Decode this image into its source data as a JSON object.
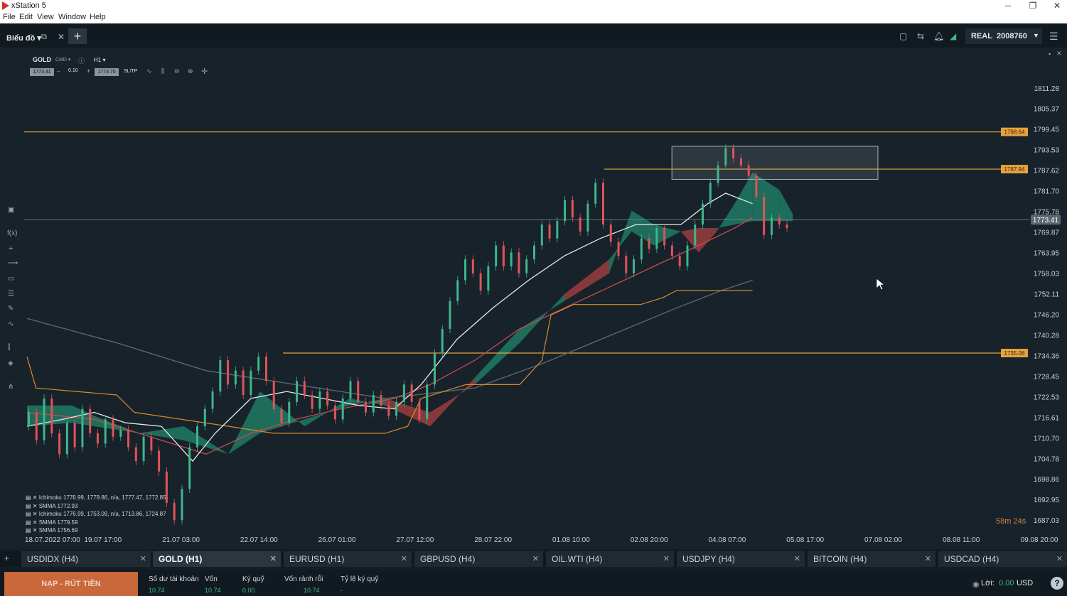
{
  "window": {
    "title": "xStation 5"
  },
  "menu": [
    "File",
    "Edit",
    "View",
    "Window",
    "Help"
  ],
  "appbar": {
    "section": "Biểu đồ",
    "account_type": "REAL",
    "account_number": "2008760"
  },
  "chart": {
    "symbol": "GOLD",
    "cmd": "CMD",
    "timeframe": "H1",
    "sell_price": "1773.41",
    "volume": "0.10",
    "buy_price": "1773.70",
    "sltp": "SL/TP",
    "countdown": "58m 24s",
    "cursor": {
      "x": 1233,
      "y": 392
    },
    "indicators": [
      "Ichimoku 1776.99, 1779.86, n/a, 1777.47, 1772.85",
      "SMMA 1772.93",
      "Ichimoku 1776.99, 1753.09, n/a, 1713.86, 1724.87",
      "SMMA 1779.59",
      "SMMA 1756.69"
    ]
  },
  "chart_data": {
    "type": "candlestick",
    "y_ticks": [
      "1811.28",
      "1805.37",
      "1799.45",
      "1793.53",
      "1787.62",
      "1781.70",
      "1775.78",
      "1769.87",
      "1763.95",
      "1758.03",
      "1752.11",
      "1746.20",
      "1740.28",
      "1734.36",
      "1728.45",
      "1722.53",
      "1716.61",
      "1710.70",
      "1704.78",
      "1698.86",
      "1692.95",
      "1687.03"
    ],
    "x_ticks": [
      "18.07.2022 07:00",
      "19.07 17:00",
      "21.07 03:00",
      "22.07 14:00",
      "26.07 01:00",
      "27.07 12:00",
      "28.07 22:00",
      "01.08 10:00",
      "02.08 20:00",
      "04.08 07:00",
      "05.08 17:00",
      "07.08 02:00",
      "08.08 11:00",
      "09.08 20:00"
    ],
    "ylim": [
      1684.0,
      1814.3
    ],
    "current_price": "1773.41",
    "horizontal_levels": [
      "1798.64",
      "1787.94",
      "1735.06"
    ],
    "smma_fast": [
      [
        0,
        1714
      ],
      [
        8,
        1716
      ],
      [
        15,
        1718
      ],
      [
        22,
        1715
      ],
      [
        30,
        1714
      ],
      [
        37,
        1704
      ],
      [
        42,
        1712
      ],
      [
        50,
        1722
      ],
      [
        58,
        1724
      ],
      [
        66,
        1722
      ],
      [
        74,
        1720
      ],
      [
        82,
        1719
      ],
      [
        88,
        1726
      ],
      [
        96,
        1739
      ],
      [
        104,
        1748
      ],
      [
        112,
        1756
      ],
      [
        120,
        1763
      ],
      [
        128,
        1768
      ],
      [
        136,
        1772
      ],
      [
        140,
        1772
      ],
      [
        146,
        1772
      ],
      [
        152,
        1778
      ],
      [
        156,
        1781
      ],
      [
        162,
        1778
      ]
    ],
    "smma_mid": [
      [
        0,
        1718
      ],
      [
        15,
        1716
      ],
      [
        30,
        1710
      ],
      [
        40,
        1706
      ],
      [
        50,
        1712
      ],
      [
        60,
        1716
      ],
      [
        70,
        1719
      ],
      [
        82,
        1722
      ],
      [
        90,
        1726
      ],
      [
        100,
        1733
      ],
      [
        110,
        1742
      ],
      [
        120,
        1748
      ],
      [
        130,
        1754
      ],
      [
        140,
        1760
      ],
      [
        150,
        1766
      ],
      [
        158,
        1771
      ],
      [
        162,
        1774
      ]
    ],
    "smma_slow": [
      [
        0,
        1745
      ],
      [
        20,
        1738
      ],
      [
        40,
        1730
      ],
      [
        60,
        1726
      ],
      [
        80,
        1722
      ],
      [
        100,
        1725
      ],
      [
        115,
        1732
      ],
      [
        130,
        1740
      ],
      [
        145,
        1748
      ],
      [
        155,
        1753
      ],
      [
        162,
        1756
      ]
    ],
    "kijun": [
      [
        0,
        1734
      ],
      [
        2,
        1725
      ],
      [
        20,
        1723
      ],
      [
        24,
        1718
      ],
      [
        45,
        1714
      ],
      [
        55,
        1712
      ],
      [
        80,
        1712
      ],
      [
        85,
        1714
      ],
      [
        88,
        1722
      ],
      [
        98,
        1726
      ],
      [
        110,
        1726
      ],
      [
        115,
        1733
      ],
      [
        117,
        1746
      ],
      [
        122,
        1749
      ],
      [
        137,
        1749
      ],
      [
        142,
        1751
      ],
      [
        145,
        1753
      ],
      [
        162,
        1753
      ]
    ],
    "cloud_a": [
      [
        0,
        1720
      ],
      [
        10,
        1720
      ],
      [
        15,
        1717
      ],
      [
        25,
        1712
      ],
      [
        35,
        1714
      ],
      [
        45,
        1706
      ],
      [
        52,
        1724
      ],
      [
        62,
        1714
      ],
      [
        72,
        1722
      ],
      [
        80,
        1720
      ],
      [
        90,
        1714
      ],
      [
        100,
        1728
      ],
      [
        110,
        1742
      ],
      [
        120,
        1750
      ],
      [
        130,
        1758
      ],
      [
        135,
        1776
      ],
      [
        140,
        1772
      ],
      [
        146,
        1770
      ],
      [
        150,
        1764
      ],
      [
        154,
        1770
      ],
      [
        158,
        1778
      ],
      [
        162,
        1787
      ],
      [
        168,
        1782
      ],
      [
        171,
        1775
      ]
    ],
    "cloud_b": [
      [
        0,
        1714
      ],
      [
        10,
        1715
      ],
      [
        15,
        1714
      ],
      [
        25,
        1712
      ],
      [
        35,
        1710
      ],
      [
        45,
        1706
      ],
      [
        52,
        1712
      ],
      [
        62,
        1716
      ],
      [
        72,
        1720
      ],
      [
        80,
        1722
      ],
      [
        90,
        1718
      ],
      [
        100,
        1726
      ],
      [
        110,
        1738
      ],
      [
        120,
        1752
      ],
      [
        130,
        1762
      ],
      [
        135,
        1770
      ],
      [
        140,
        1766
      ],
      [
        146,
        1770
      ],
      [
        150,
        1771
      ],
      [
        154,
        1771
      ],
      [
        158,
        1772
      ],
      [
        162,
        1773
      ],
      [
        168,
        1773
      ],
      [
        171,
        1773
      ]
    ],
    "candles": [
      [
        1714,
        1718
      ],
      [
        1718,
        1710
      ],
      [
        1710,
        1722
      ],
      [
        1722,
        1712
      ],
      [
        1712,
        1706
      ],
      [
        1706,
        1715
      ],
      [
        1715,
        1708
      ],
      [
        1708,
        1719
      ],
      [
        1719,
        1712
      ],
      [
        1712,
        1709
      ],
      [
        1709,
        1716
      ],
      [
        1716,
        1711
      ],
      [
        1711,
        1713
      ],
      [
        1713,
        1708
      ],
      [
        1708,
        1704
      ],
      [
        1704,
        1711
      ],
      [
        1711,
        1707
      ],
      [
        1707,
        1701
      ],
      [
        1701,
        1692
      ],
      [
        1692,
        1687
      ],
      [
        1687,
        1696
      ],
      [
        1696,
        1708
      ],
      [
        1708,
        1714
      ],
      [
        1714,
        1719
      ],
      [
        1719,
        1724
      ],
      [
        1724,
        1733
      ],
      [
        1733,
        1726
      ],
      [
        1726,
        1730
      ],
      [
        1730,
        1723
      ],
      [
        1723,
        1730
      ],
      [
        1730,
        1734
      ],
      [
        1734,
        1727
      ],
      [
        1727,
        1719
      ],
      [
        1719,
        1715
      ],
      [
        1715,
        1721
      ],
      [
        1721,
        1727
      ],
      [
        1727,
        1723
      ],
      [
        1723,
        1719
      ],
      [
        1719,
        1724
      ],
      [
        1724,
        1720
      ],
      [
        1720,
        1716
      ],
      [
        1716,
        1722
      ],
      [
        1722,
        1727
      ],
      [
        1727,
        1721
      ],
      [
        1721,
        1718
      ],
      [
        1718,
        1723
      ],
      [
        1723,
        1720
      ],
      [
        1720,
        1717
      ],
      [
        1717,
        1721
      ],
      [
        1721,
        1726
      ],
      [
        1726,
        1721
      ],
      [
        1721,
        1716
      ],
      [
        1716,
        1726
      ],
      [
        1726,
        1735
      ],
      [
        1735,
        1742
      ],
      [
        1742,
        1750
      ],
      [
        1750,
        1756
      ],
      [
        1756,
        1762
      ],
      [
        1762,
        1758
      ],
      [
        1758,
        1753
      ],
      [
        1753,
        1760
      ],
      [
        1760,
        1766
      ],
      [
        1766,
        1760
      ],
      [
        1760,
        1764
      ],
      [
        1764,
        1758
      ],
      [
        1758,
        1762
      ],
      [
        1762,
        1766
      ],
      [
        1766,
        1772
      ],
      [
        1772,
        1768
      ],
      [
        1768,
        1773
      ],
      [
        1773,
        1779
      ],
      [
        1779,
        1774
      ],
      [
        1774,
        1770
      ],
      [
        1770,
        1778
      ],
      [
        1778,
        1784
      ],
      [
        1784,
        1772
      ],
      [
        1772,
        1767
      ],
      [
        1767,
        1763
      ],
      [
        1763,
        1758
      ],
      [
        1758,
        1762
      ],
      [
        1762,
        1768
      ],
      [
        1768,
        1765
      ],
      [
        1765,
        1771
      ],
      [
        1771,
        1766
      ],
      [
        1766,
        1763
      ],
      [
        1763,
        1760
      ],
      [
        1760,
        1766
      ],
      [
        1766,
        1772
      ],
      [
        1772,
        1778
      ],
      [
        1778,
        1784
      ],
      [
        1784,
        1789
      ],
      [
        1789,
        1794
      ],
      [
        1794,
        1791
      ],
      [
        1791,
        1789
      ],
      [
        1789,
        1786
      ],
      [
        1786,
        1780
      ],
      [
        1780,
        1769
      ],
      [
        1769,
        1774
      ],
      [
        1774,
        1772
      ],
      [
        1772,
        1771
      ]
    ]
  },
  "tabs": [
    {
      "label": "USDIDX (H4)",
      "active": false
    },
    {
      "label": "GOLD (H1)",
      "active": true
    },
    {
      "label": "EURUSD (H1)",
      "active": false
    },
    {
      "label": "GBPUSD (H4)",
      "active": false
    },
    {
      "label": "OIL.WTI (H4)",
      "active": false
    },
    {
      "label": "USDJPY (H4)",
      "active": false
    },
    {
      "label": "BITCOIN (H4)",
      "active": false
    },
    {
      "label": "USDCAD (H4)",
      "active": false
    }
  ],
  "footer": {
    "deposit_button": "NẠP - RÚT TIỀN",
    "account": [
      {
        "label": "Số dư tài khoản",
        "value": "10.74"
      },
      {
        "label": "Vốn",
        "value": "10.74"
      },
      {
        "label": "Ký quỹ",
        "value": "0.00"
      },
      {
        "label": "Vốn rảnh rỗi",
        "value": "10.74"
      },
      {
        "label": "Tỷ lệ ký quỹ",
        "value": "-"
      }
    ],
    "profit_label": "Lời:",
    "profit_value": "0.00",
    "currency": "USD"
  },
  "colors": {
    "up": "#3fb68b",
    "down": "#e0535a",
    "level": "#e6a23c",
    "cloud_up": "#1f7a63",
    "cloud_down": "#9a3d3d",
    "accent": "#c9683a"
  }
}
